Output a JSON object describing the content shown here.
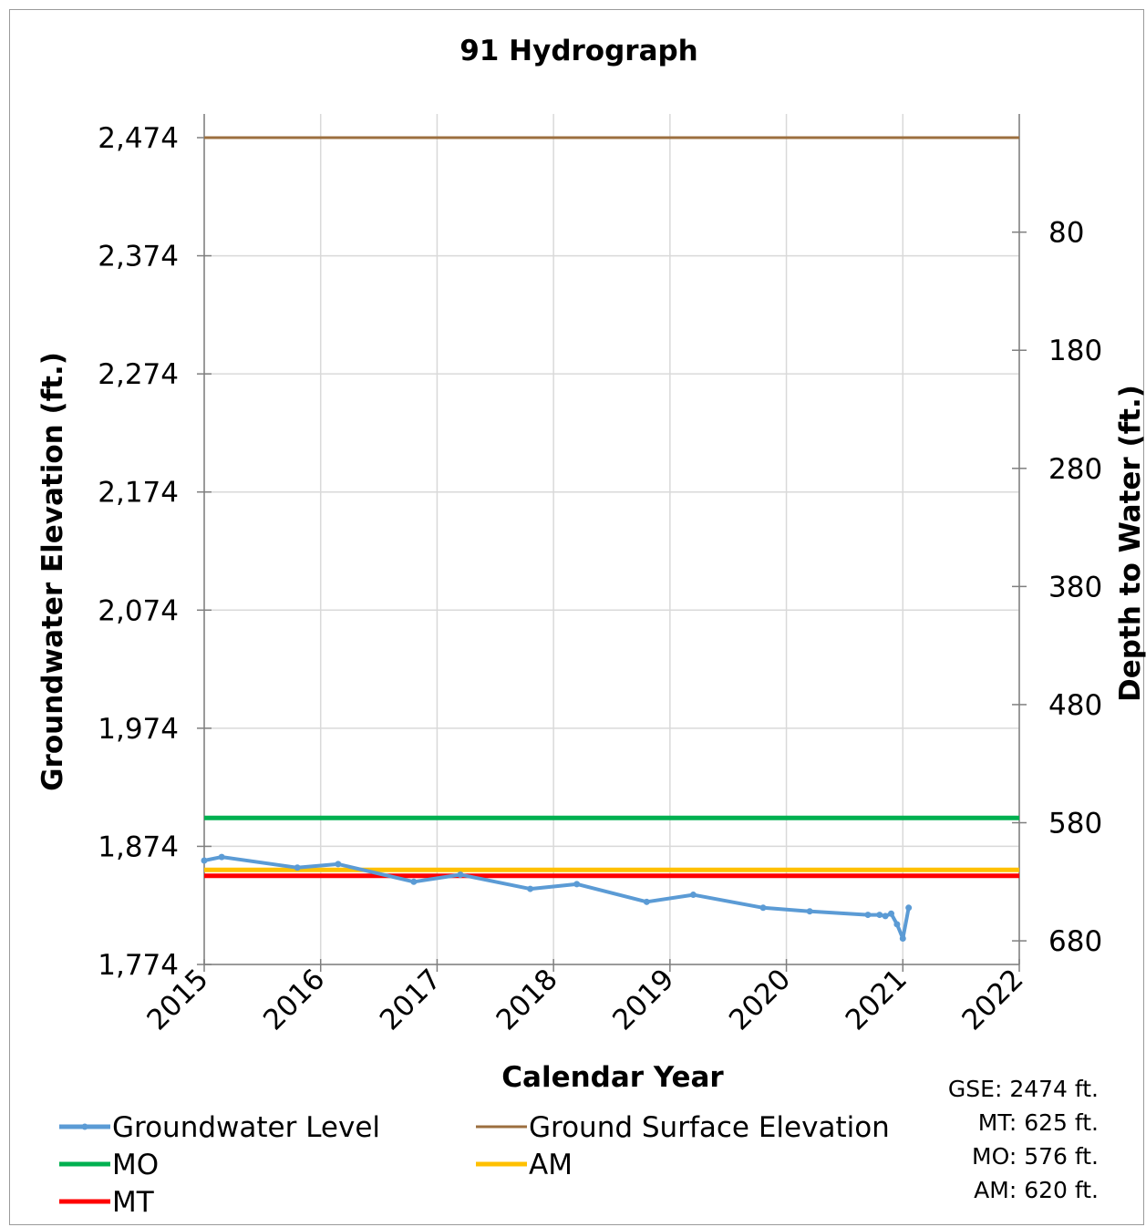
{
  "chart_data": {
    "type": "line",
    "title": "91 Hydrograph",
    "xlabel": "Calendar Year",
    "ylabel": "Groundwater Elevation (ft.)",
    "y2label": "Depth to Water (ft.)",
    "xlim": [
      2015,
      2022
    ],
    "ylim": [
      1774,
      2474
    ],
    "x_ticks": [
      "2015",
      "2016",
      "2017",
      "2018",
      "2019",
      "2020",
      "2021",
      "2022"
    ],
    "y_ticks": [
      "1,774",
      "1,874",
      "1,974",
      "2,074",
      "2,174",
      "2,274",
      "2,374",
      "2,474"
    ],
    "y2_ticks": [
      "80",
      "180",
      "280",
      "380",
      "480",
      "580",
      "680"
    ],
    "y2_reference": 2474,
    "grid": true,
    "series": [
      {
        "name": "Groundwater Level",
        "color": "#5b9bd5",
        "marker": true,
        "x": [
          2015.0,
          2015.15,
          2015.8,
          2016.15,
          2016.8,
          2017.2,
          2017.8,
          2018.2,
          2018.8,
          2019.2,
          2019.8,
          2020.2,
          2020.7,
          2020.8,
          2020.85,
          2020.9,
          2020.95,
          2021.0,
          2021.05
        ],
        "y": [
          1862,
          1865,
          1856,
          1859,
          1844,
          1850,
          1838,
          1842,
          1827,
          1833,
          1822,
          1819,
          1816,
          1816,
          1815,
          1817,
          1808,
          1796,
          1822
        ]
      },
      {
        "name": "Ground Surface Elevation",
        "color": "#9c6f3f",
        "x": [
          2015,
          2022
        ],
        "y": [
          2474,
          2474
        ]
      },
      {
        "name": "MO",
        "color": "#00b050",
        "x": [
          2015,
          2022
        ],
        "y": [
          1898,
          1898
        ]
      },
      {
        "name": "AM",
        "color": "#ffc000",
        "x": [
          2015,
          2022
        ],
        "y": [
          1854,
          1854
        ]
      },
      {
        "name": "MT",
        "color": "#ff0000",
        "x": [
          2015,
          2022
        ],
        "y": [
          1849,
          1849
        ]
      }
    ],
    "legend": {
      "placement": "bottom-left",
      "entries": [
        "Groundwater Level",
        "Ground Surface Elevation",
        "MO",
        "AM",
        "MT"
      ]
    },
    "notes": [
      "GSE: 2474 ft.",
      "MT: 625 ft.",
      "MO: 576 ft.",
      "AM: 620 ft."
    ]
  }
}
